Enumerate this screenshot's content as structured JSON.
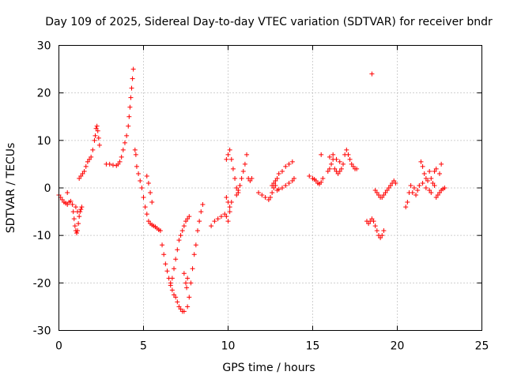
{
  "chart_data": {
    "type": "scatter",
    "title": "Day 109 of 2025, Sidereal Day-to-day VTEC variation (SDTVAR) for receiver bndr",
    "xlabel": "GPS time / hours",
    "ylabel": "SDTVAR / TECUs",
    "xlim": [
      0,
      25
    ],
    "ylim": [
      -30,
      30
    ],
    "x_ticks": [
      0,
      5,
      10,
      15,
      20,
      25
    ],
    "y_ticks": [
      -30,
      -20,
      -10,
      0,
      10,
      20,
      30
    ],
    "x_tick_labels": [
      "0",
      "5",
      "10",
      "15",
      "20",
      "25"
    ],
    "y_tick_labels": [
      "-30",
      "-20",
      "-10",
      "0",
      "10",
      "20",
      "30"
    ],
    "grid": true,
    "marker": "+",
    "color": "#ff0000",
    "series": [
      {
        "points": [
          [
            0.0,
            -1.5
          ],
          [
            0.1,
            -2.0
          ],
          [
            0.2,
            -2.5
          ],
          [
            0.3,
            -3.0
          ],
          [
            0.4,
            -3.2
          ],
          [
            0.5,
            -3.5
          ],
          [
            0.6,
            -3.0
          ],
          [
            0.7,
            -2.8
          ],
          [
            0.8,
            -3.5
          ],
          [
            0.85,
            -5.0
          ],
          [
            0.9,
            -6.5
          ],
          [
            0.95,
            -8.0
          ],
          [
            1.0,
            -9.0
          ],
          [
            1.05,
            -9.5
          ],
          [
            1.1,
            -9.0
          ],
          [
            1.15,
            -7.5
          ],
          [
            1.2,
            -6.0
          ],
          [
            1.25,
            -5.0
          ],
          [
            1.3,
            -4.5
          ],
          [
            1.35,
            -4.0
          ],
          [
            0.5,
            -1.0
          ],
          [
            1.0,
            -4.0
          ],
          [
            1.1,
            -5.0
          ],
          [
            1.2,
            2.0
          ],
          [
            1.3,
            2.5
          ],
          [
            1.4,
            3.0
          ],
          [
            1.5,
            3.5
          ],
          [
            1.6,
            4.5
          ],
          [
            1.7,
            5.5
          ],
          [
            1.8,
            6.0
          ],
          [
            1.9,
            6.5
          ],
          [
            2.0,
            8.0
          ],
          [
            2.1,
            10.0
          ],
          [
            2.15,
            11.0
          ],
          [
            2.2,
            12.5
          ],
          [
            2.25,
            13.0
          ],
          [
            2.3,
            12.0
          ],
          [
            2.35,
            10.5
          ],
          [
            2.4,
            9.0
          ],
          [
            2.8,
            5.0
          ],
          [
            3.0,
            5.0
          ],
          [
            3.2,
            4.8
          ],
          [
            3.4,
            4.7
          ],
          [
            3.5,
            5.0
          ],
          [
            3.6,
            5.5
          ],
          [
            3.7,
            6.5
          ],
          [
            3.8,
            8.0
          ],
          [
            3.9,
            9.5
          ],
          [
            4.0,
            11.0
          ],
          [
            4.1,
            13.0
          ],
          [
            4.15,
            15.0
          ],
          [
            4.2,
            17.0
          ],
          [
            4.25,
            19.0
          ],
          [
            4.3,
            21.0
          ],
          [
            4.35,
            23.0
          ],
          [
            4.4,
            25.0
          ],
          [
            4.5,
            8.0
          ],
          [
            4.55,
            7.0
          ],
          [
            4.6,
            4.5
          ],
          [
            4.7,
            3.0
          ],
          [
            4.8,
            1.5
          ],
          [
            4.9,
            0.0
          ],
          [
            5.0,
            -2.0
          ],
          [
            5.1,
            -4.0
          ],
          [
            5.2,
            -5.5
          ],
          [
            5.3,
            -7.0
          ],
          [
            5.4,
            -7.5
          ],
          [
            5.5,
            -7.8
          ],
          [
            5.6,
            -8.0
          ],
          [
            5.7,
            -8.2
          ],
          [
            5.8,
            -8.5
          ],
          [
            5.9,
            -8.8
          ],
          [
            6.0,
            -9.0
          ],
          [
            5.2,
            2.5
          ],
          [
            5.3,
            1.0
          ],
          [
            5.4,
            -1.0
          ],
          [
            5.5,
            -3.0
          ],
          [
            6.1,
            -12.0
          ],
          [
            6.2,
            -14.0
          ],
          [
            6.3,
            -16.0
          ],
          [
            6.4,
            -17.5
          ],
          [
            6.5,
            -19.0
          ],
          [
            6.6,
            -20.0
          ],
          [
            6.7,
            -19.0
          ],
          [
            6.8,
            -17.0
          ],
          [
            6.9,
            -15.0
          ],
          [
            6.6,
            -20.5
          ],
          [
            6.7,
            -21.5
          ],
          [
            6.8,
            -22.5
          ],
          [
            6.9,
            -23.0
          ],
          [
            7.0,
            -24.0
          ],
          [
            7.1,
            -25.0
          ],
          [
            7.2,
            -25.5
          ],
          [
            7.3,
            -26.0
          ],
          [
            7.4,
            -26.0
          ],
          [
            7.0,
            -13.0
          ],
          [
            7.1,
            -11.0
          ],
          [
            7.2,
            -10.0
          ],
          [
            7.3,
            -9.0
          ],
          [
            7.4,
            -8.0
          ],
          [
            7.5,
            -7.0
          ],
          [
            7.6,
            -6.5
          ],
          [
            7.7,
            -6.0
          ],
          [
            7.4,
            -18.0
          ],
          [
            7.5,
            -20.0
          ],
          [
            7.55,
            -21.0
          ],
          [
            7.6,
            -19.0
          ],
          [
            7.6,
            -25.0
          ],
          [
            7.7,
            -23.0
          ],
          [
            7.8,
            -20.0
          ],
          [
            7.9,
            -17.0
          ],
          [
            8.0,
            -14.0
          ],
          [
            8.1,
            -12.0
          ],
          [
            8.2,
            -9.0
          ],
          [
            8.3,
            -7.0
          ],
          [
            8.4,
            -5.0
          ],
          [
            8.5,
            -3.5
          ],
          [
            9.0,
            -8.0
          ],
          [
            9.2,
            -7.0
          ],
          [
            9.4,
            -6.5
          ],
          [
            9.6,
            -6.0
          ],
          [
            9.8,
            -5.5
          ],
          [
            9.9,
            -6.0
          ],
          [
            10.0,
            -7.0
          ],
          [
            10.1,
            -5.0
          ],
          [
            10.2,
            -3.0
          ],
          [
            9.9,
            -2.0
          ],
          [
            10.0,
            -3.0
          ],
          [
            10.1,
            -4.0
          ],
          [
            9.9,
            6.0
          ],
          [
            10.0,
            7.0
          ],
          [
            10.1,
            8.0
          ],
          [
            10.2,
            6.0
          ],
          [
            10.3,
            4.0
          ],
          [
            10.4,
            2.0
          ],
          [
            10.5,
            0.0
          ],
          [
            10.6,
            -1.0
          ],
          [
            10.5,
            -1.5
          ],
          [
            10.6,
            -0.5
          ],
          [
            10.7,
            0.5
          ],
          [
            10.8,
            2.0
          ],
          [
            10.9,
            3.5
          ],
          [
            11.0,
            5.0
          ],
          [
            11.1,
            7.0
          ],
          [
            11.2,
            2.0
          ],
          [
            11.3,
            1.5
          ],
          [
            11.4,
            2.0
          ],
          [
            11.8,
            -1.0
          ],
          [
            12.0,
            -1.5
          ],
          [
            12.2,
            -2.0
          ],
          [
            12.4,
            -2.5
          ],
          [
            12.5,
            -2.0
          ],
          [
            12.6,
            -1.0
          ],
          [
            12.7,
            0.0
          ],
          [
            12.8,
            0.5
          ],
          [
            12.6,
            0.5
          ],
          [
            12.7,
            1.0
          ],
          [
            12.8,
            1.5
          ],
          [
            12.9,
            2.0
          ],
          [
            13.0,
            3.0
          ],
          [
            13.2,
            3.5
          ],
          [
            13.4,
            4.5
          ],
          [
            13.6,
            5.0
          ],
          [
            13.8,
            5.5
          ],
          [
            12.9,
            -0.5
          ],
          [
            13.0,
            -0.3
          ],
          [
            13.2,
            0.0
          ],
          [
            13.4,
            0.5
          ],
          [
            13.6,
            1.0
          ],
          [
            13.8,
            1.5
          ],
          [
            13.9,
            2.0
          ],
          [
            14.8,
            2.5
          ],
          [
            15.0,
            2.0
          ],
          [
            15.1,
            1.8
          ],
          [
            15.2,
            1.5
          ],
          [
            15.3,
            1.0
          ],
          [
            15.4,
            0.8
          ],
          [
            15.5,
            1.2
          ],
          [
            15.6,
            2.0
          ],
          [
            15.5,
            7.0
          ],
          [
            15.9,
            3.5
          ],
          [
            16.0,
            4.0
          ],
          [
            16.1,
            5.0
          ],
          [
            16.2,
            6.0
          ],
          [
            16.3,
            4.0
          ],
          [
            16.4,
            3.5
          ],
          [
            16.5,
            3.0
          ],
          [
            16.6,
            3.5
          ],
          [
            16.7,
            4.0
          ],
          [
            16.8,
            5.0
          ],
          [
            16.9,
            7.0
          ],
          [
            17.0,
            8.0
          ],
          [
            17.1,
            7.0
          ],
          [
            17.2,
            6.0
          ],
          [
            17.3,
            5.0
          ],
          [
            17.4,
            4.5
          ],
          [
            17.5,
            4.0
          ],
          [
            17.6,
            4.0
          ],
          [
            16.0,
            6.5
          ],
          [
            16.2,
            7.0
          ],
          [
            16.4,
            6.0
          ],
          [
            16.6,
            5.5
          ],
          [
            18.5,
            24.0
          ],
          [
            18.2,
            -7.0
          ],
          [
            18.3,
            -7.5
          ],
          [
            18.4,
            -7.0
          ],
          [
            18.5,
            -6.5
          ],
          [
            18.6,
            -7.0
          ],
          [
            18.7,
            -8.0
          ],
          [
            18.8,
            -9.0
          ],
          [
            18.9,
            -10.0
          ],
          [
            19.0,
            -10.5
          ],
          [
            19.1,
            -10.0
          ],
          [
            19.2,
            -9.0
          ],
          [
            18.7,
            -0.5
          ],
          [
            18.8,
            -1.0
          ],
          [
            18.9,
            -1.5
          ],
          [
            19.0,
            -2.0
          ],
          [
            19.1,
            -2.0
          ],
          [
            19.2,
            -1.5
          ],
          [
            19.3,
            -1.0
          ],
          [
            19.4,
            -0.5
          ],
          [
            19.5,
            0.0
          ],
          [
            19.6,
            0.5
          ],
          [
            19.7,
            1.0
          ],
          [
            19.8,
            1.5
          ],
          [
            19.9,
            1.0
          ],
          [
            20.5,
            -4.0
          ],
          [
            20.6,
            -3.0
          ],
          [
            20.7,
            -1.0
          ],
          [
            20.8,
            0.5
          ],
          [
            20.9,
            -1.0
          ],
          [
            21.0,
            0.0
          ],
          [
            21.1,
            -1.5
          ],
          [
            21.2,
            -0.5
          ],
          [
            21.3,
            0.5
          ],
          [
            21.4,
            5.5
          ],
          [
            21.5,
            4.5
          ],
          [
            21.6,
            3.0
          ],
          [
            21.7,
            2.0
          ],
          [
            21.8,
            1.5
          ],
          [
            21.9,
            3.5
          ],
          [
            22.0,
            2.0
          ],
          [
            22.1,
            1.0
          ],
          [
            22.2,
            0.5
          ],
          [
            21.5,
            1.0
          ],
          [
            21.7,
            0.0
          ],
          [
            21.9,
            -0.5
          ],
          [
            22.0,
            -1.0
          ],
          [
            22.2,
            3.5
          ],
          [
            22.3,
            4.0
          ],
          [
            22.5,
            3.0
          ],
          [
            22.6,
            5.0
          ],
          [
            22.3,
            -2.0
          ],
          [
            22.4,
            -1.5
          ],
          [
            22.5,
            -1.0
          ],
          [
            22.6,
            -0.5
          ],
          [
            22.7,
            -0.2
          ],
          [
            22.8,
            0.0
          ]
        ]
      }
    ]
  }
}
